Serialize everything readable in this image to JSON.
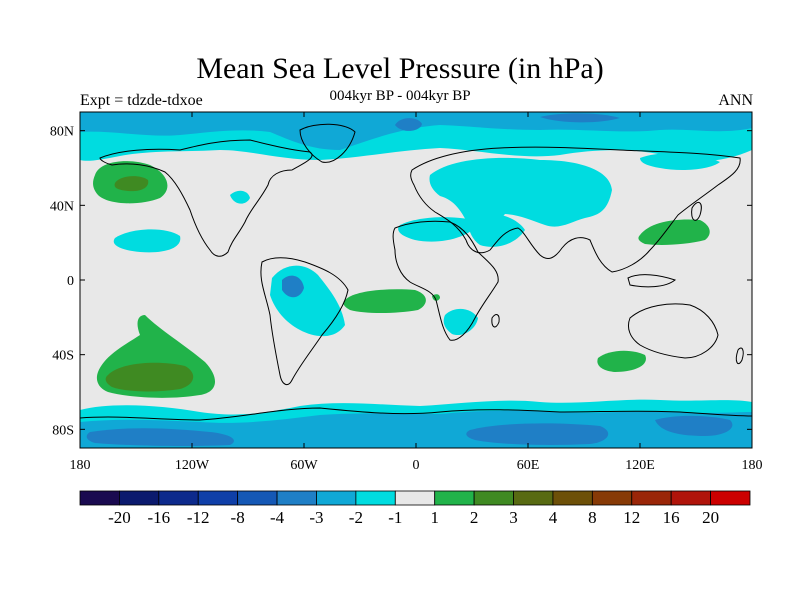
{
  "header": {
    "title": "Mean Sea Level Pressure (in hPa)",
    "experiment": "Expt = tdzde-tdxoe",
    "period": "004kyr BP - 004kyr BP",
    "season": "ANN"
  },
  "map": {
    "lon_range": [
      -180,
      180
    ],
    "lat_range": [
      -90,
      90
    ],
    "x_ticks": [
      {
        "value": -180,
        "label": "180"
      },
      {
        "value": -120,
        "label": "120W"
      },
      {
        "value": -60,
        "label": "60W"
      },
      {
        "value": 0,
        "label": "0"
      },
      {
        "value": 60,
        "label": "60E"
      },
      {
        "value": 120,
        "label": "120E"
      },
      {
        "value": 180,
        "label": "180"
      }
    ],
    "y_ticks": [
      {
        "value": 80,
        "label": "80N"
      },
      {
        "value": 40,
        "label": "40N"
      },
      {
        "value": 0,
        "label": "0"
      },
      {
        "value": -40,
        "label": "40S"
      },
      {
        "value": -80,
        "label": "80S"
      }
    ],
    "background_color": "#e8e8e8"
  },
  "colorbar": {
    "colors": [
      "#1a0a50",
      "#0b1a6e",
      "#0d2a8c",
      "#0f3fa8",
      "#1558b5",
      "#1f7fc6",
      "#10a8d6",
      "#00dce0",
      "#e8e8e8",
      "#21b34a",
      "#3f8a22",
      "#586a12",
      "#6d5008",
      "#873a06",
      "#9a2608",
      "#b0140a",
      "#cc0000"
    ],
    "labels": [
      "-20",
      "-16",
      "-12",
      "-8",
      "-4",
      "-3",
      "-2",
      "-1",
      "1",
      "2",
      "3",
      "4",
      "8",
      "12",
      "16",
      "20"
    ]
  }
}
